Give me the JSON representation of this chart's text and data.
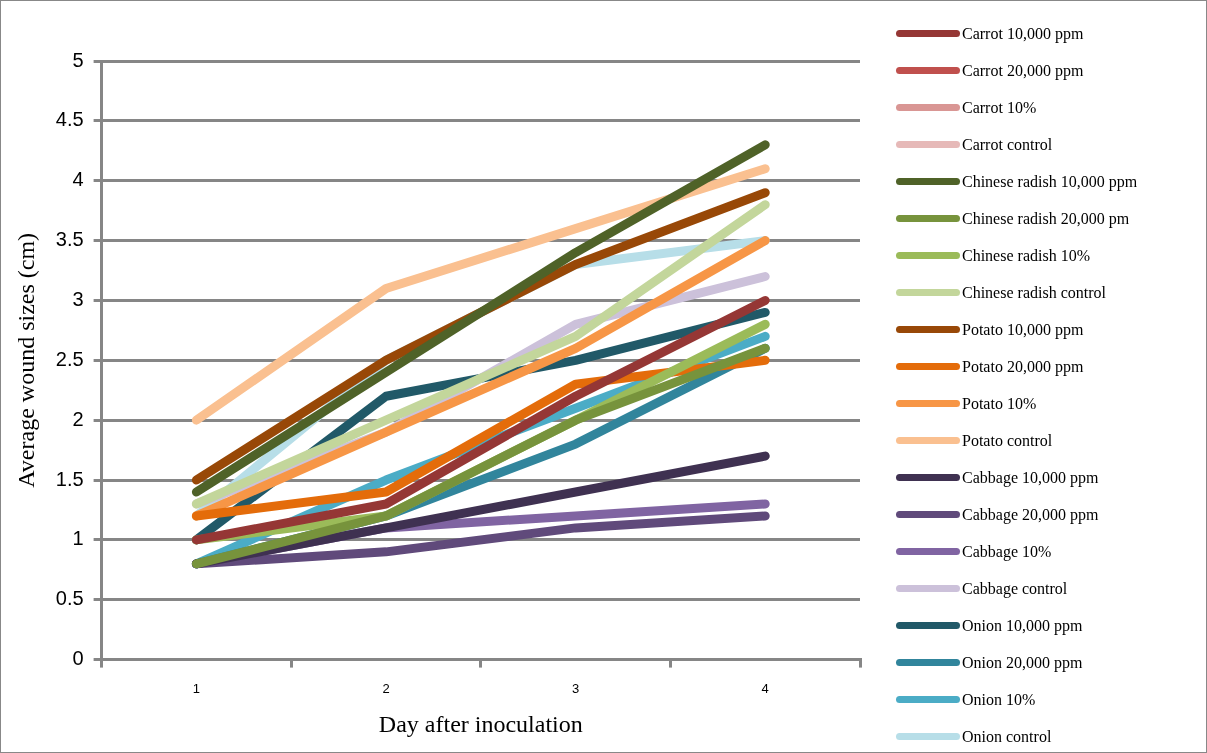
{
  "chart_data": {
    "type": "line",
    "xlabel": "Day after inoculation",
    "ylabel": "Average wound sizes (cm)",
    "categories": [
      "1",
      "2",
      "3",
      "4"
    ],
    "ylim": [
      0,
      5
    ],
    "yticks": [
      0,
      0.5,
      1,
      1.5,
      2,
      2.5,
      3,
      3.5,
      4,
      4.5,
      5
    ],
    "grid": "y",
    "legend": "right",
    "marker": "none",
    "line_style": "solid",
    "series": [
      {
        "name": "Carrot 10,000 ppm",
        "color": "#953735",
        "values": [
          1.0,
          1.3,
          2.2,
          3.0
        ]
      },
      {
        "name": "Carrot 20,000 ppm",
        "color": "#c0504d",
        "values": [
          null,
          null,
          null,
          null
        ]
      },
      {
        "name": "Carrot 10%",
        "color": "#d99694",
        "values": [
          null,
          null,
          null,
          null
        ]
      },
      {
        "name": "Carrot control",
        "color": "#e6b9b8",
        "values": [
          null,
          null,
          null,
          null
        ]
      },
      {
        "name": "Chinese radish 10,000 ppm",
        "color": "#4f6228",
        "values": [
          1.4,
          2.4,
          3.4,
          4.3
        ]
      },
      {
        "name": "Chinese radish 20,000 pm",
        "color": "#77933c",
        "values": [
          0.8,
          1.2,
          2.0,
          2.6
        ]
      },
      {
        "name": "Chinese radish 10%",
        "color": "#9bbb59",
        "values": [
          1.0,
          1.2,
          2.0,
          2.8
        ]
      },
      {
        "name": "Chinese radish control",
        "color": "#c3d69b",
        "values": [
          1.3,
          2.0,
          2.7,
          3.8
        ]
      },
      {
        "name": "Potato 10,000 ppm",
        "color": "#984807",
        "values": [
          1.5,
          2.5,
          3.3,
          3.9
        ]
      },
      {
        "name": "Potato 20,000 ppm",
        "color": "#e46c0a",
        "values": [
          1.2,
          1.4,
          2.3,
          2.5
        ]
      },
      {
        "name": "Potato 10%",
        "color": "#f79646",
        "values": [
          1.2,
          1.9,
          2.6,
          3.5
        ]
      },
      {
        "name": "Potato control",
        "color": "#fac090",
        "values": [
          2.0,
          3.1,
          3.6,
          4.1
        ]
      },
      {
        "name": "Cabbage 10,000 ppm",
        "color": "#3f3151",
        "values": [
          0.8,
          1.1,
          1.4,
          1.7
        ]
      },
      {
        "name": "Cabbage 20,000 ppm",
        "color": "#604a7b",
        "values": [
          0.8,
          0.9,
          1.1,
          1.2
        ]
      },
      {
        "name": "Cabbage 10%",
        "color": "#8064a2",
        "values": [
          0.8,
          1.1,
          1.2,
          1.3
        ]
      },
      {
        "name": "Cabbage control",
        "color": "#ccc1da",
        "values": [
          1.3,
          1.9,
          2.8,
          3.2
        ]
      },
      {
        "name": "Onion 10,000 ppm",
        "color": "#215968",
        "values": [
          1.0,
          2.2,
          2.5,
          2.9
        ]
      },
      {
        "name": "Onion 20,000 ppm",
        "color": "#31859c",
        "values": [
          0.8,
          1.2,
          1.8,
          2.6
        ]
      },
      {
        "name": "Onion 10%",
        "color": "#4bacc6",
        "values": [
          0.8,
          1.5,
          2.1,
          2.7
        ]
      },
      {
        "name": "Onion control",
        "color": "#b7dee8",
        "values": [
          1.2,
          2.5,
          3.3,
          3.5
        ]
      }
    ]
  }
}
